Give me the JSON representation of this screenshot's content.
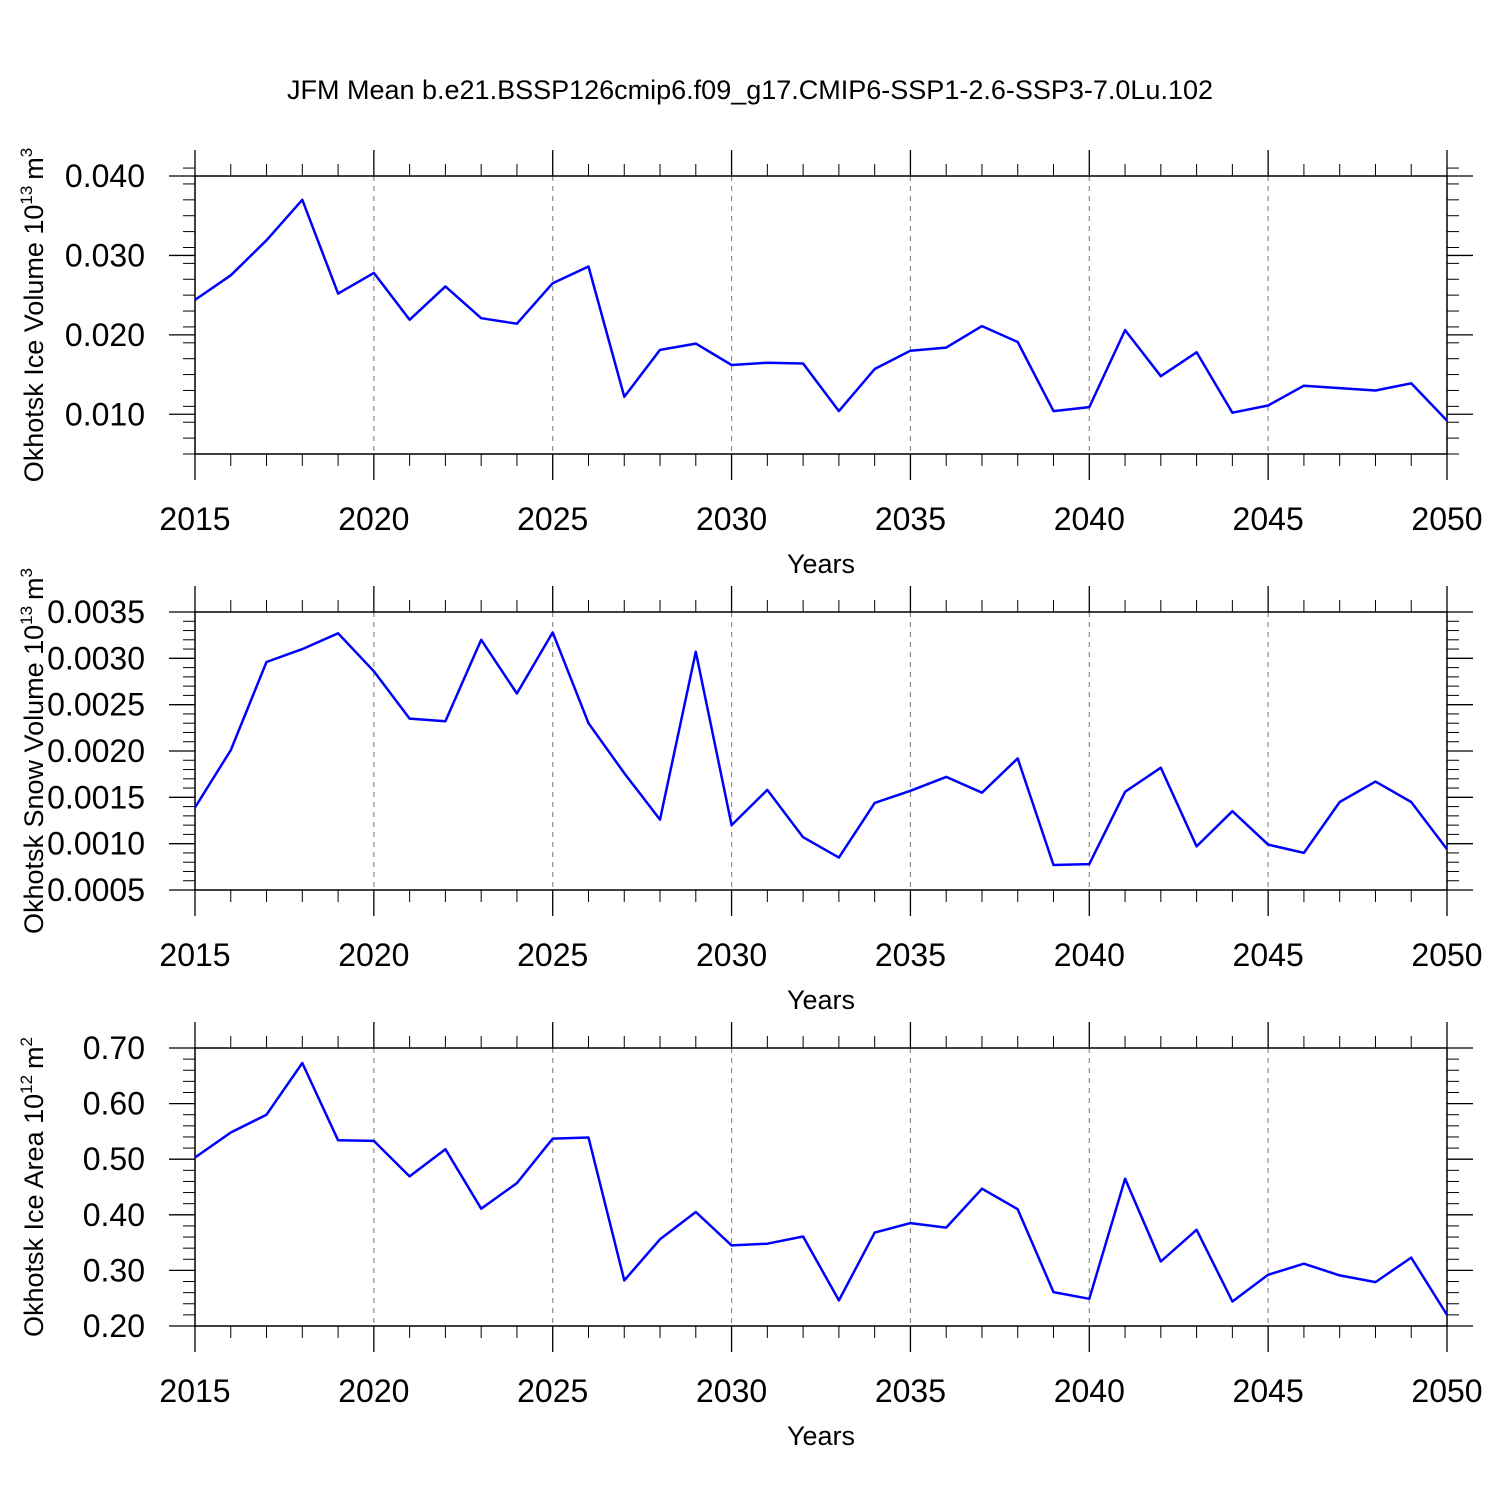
{
  "chart_data": [
    {
      "type": "line",
      "title": "JFM Mean b.e21.BSSP126cmip6.f09_g17.CMIP6-SSP1-2.6-SSP3-7.0Lu.102",
      "ylabel_main": "Okhotsk Ice Volume 10",
      "ylabel_exp": "13",
      "ylabel_unit": "m",
      "ylabel_unit_exp": "3",
      "xlabel": "Years",
      "xlim": [
        2015,
        2050
      ],
      "ylim": [
        0.005,
        0.04
      ],
      "yticks": [
        0.01,
        0.02,
        0.03,
        0.04
      ],
      "ytick_labels": [
        "0.010",
        "0.020",
        "0.030",
        "0.040"
      ],
      "xticks": [
        2015,
        2020,
        2025,
        2030,
        2035,
        2040,
        2045,
        2050
      ],
      "xtick_labels": [
        "2015",
        "2020",
        "2025",
        "2030",
        "2035",
        "2040",
        "2045",
        "2050"
      ],
      "line_color": "#0000ff",
      "x": [
        2015,
        2016,
        2017,
        2018,
        2019,
        2020,
        2021,
        2022,
        2023,
        2024,
        2025,
        2026,
        2027,
        2028,
        2029,
        2030,
        2031,
        2032,
        2033,
        2034,
        2035,
        2036,
        2037,
        2038,
        2039,
        2040,
        2041,
        2042,
        2043,
        2044,
        2045,
        2046,
        2047,
        2048,
        2049,
        2050
      ],
      "values": [
        0.0244,
        0.0275,
        0.0319,
        0.037,
        0.0252,
        0.0278,
        0.0219,
        0.0261,
        0.0221,
        0.0214,
        0.0265,
        0.0286,
        0.0122,
        0.0181,
        0.0189,
        0.0162,
        0.0165,
        0.0164,
        0.0104,
        0.0157,
        0.018,
        0.0184,
        0.0211,
        0.0191,
        0.0104,
        0.0109,
        0.0206,
        0.0148,
        0.0178,
        0.0102,
        0.0111,
        0.0136,
        0.0133,
        0.013,
        0.0139,
        0.0092
      ]
    },
    {
      "type": "line",
      "ylabel_main": "Okhotsk Snow Volume 10",
      "ylabel_exp": "13",
      "ylabel_unit": "m",
      "ylabel_unit_exp": "3",
      "xlabel": "Years",
      "xlim": [
        2015,
        2050
      ],
      "ylim": [
        0.0005,
        0.0035
      ],
      "yticks": [
        0.0005,
        0.001,
        0.0015,
        0.002,
        0.0025,
        0.003,
        0.0035
      ],
      "ytick_labels": [
        "0.0005",
        "0.0010",
        "0.0015",
        "0.0020",
        "0.0025",
        "0.0030",
        "0.0035"
      ],
      "xticks": [
        2015,
        2020,
        2025,
        2030,
        2035,
        2040,
        2045,
        2050
      ],
      "xtick_labels": [
        "2015",
        "2020",
        "2025",
        "2030",
        "2035",
        "2040",
        "2045",
        "2050"
      ],
      "line_color": "#0000ff",
      "x": [
        2015,
        2016,
        2017,
        2018,
        2019,
        2020,
        2021,
        2022,
        2023,
        2024,
        2025,
        2026,
        2027,
        2028,
        2029,
        2030,
        2031,
        2032,
        2033,
        2034,
        2035,
        2036,
        2037,
        2038,
        2039,
        2040,
        2041,
        2042,
        2043,
        2044,
        2045,
        2046,
        2047,
        2048,
        2049,
        2050
      ],
      "values": [
        0.00139,
        0.00201,
        0.00296,
        0.0031,
        0.00327,
        0.00286,
        0.00235,
        0.00232,
        0.0032,
        0.00262,
        0.00328,
        0.0023,
        0.00176,
        0.00126,
        0.00307,
        0.0012,
        0.00158,
        0.00107,
        0.00085,
        0.00144,
        0.00157,
        0.00172,
        0.00155,
        0.00192,
        0.00077,
        0.00078,
        0.00156,
        0.00182,
        0.00097,
        0.00135,
        0.00099,
        0.0009,
        0.00145,
        0.00167,
        0.00145,
        0.00094
      ]
    },
    {
      "type": "line",
      "ylabel_main": "Okhotsk Ice Area 10",
      "ylabel_exp": "12",
      "ylabel_unit": "m",
      "ylabel_unit_exp": "2",
      "xlabel": "Years",
      "xlim": [
        2015,
        2050
      ],
      "ylim": [
        0.2,
        0.7
      ],
      "yticks": [
        0.2,
        0.3,
        0.4,
        0.5,
        0.6,
        0.7
      ],
      "ytick_labels": [
        "0.20",
        "0.30",
        "0.40",
        "0.50",
        "0.60",
        "0.70"
      ],
      "xticks": [
        2015,
        2020,
        2025,
        2030,
        2035,
        2040,
        2045,
        2050
      ],
      "xtick_labels": [
        "2015",
        "2020",
        "2025",
        "2030",
        "2035",
        "2040",
        "2045",
        "2050"
      ],
      "line_color": "#0000ff",
      "x": [
        2015,
        2016,
        2017,
        2018,
        2019,
        2020,
        2021,
        2022,
        2023,
        2024,
        2025,
        2026,
        2027,
        2028,
        2029,
        2030,
        2031,
        2032,
        2033,
        2034,
        2035,
        2036,
        2037,
        2038,
        2039,
        2040,
        2041,
        2042,
        2043,
        2044,
        2045,
        2046,
        2047,
        2048,
        2049,
        2050
      ],
      "values": [
        0.503,
        0.548,
        0.58,
        0.673,
        0.534,
        0.533,
        0.469,
        0.518,
        0.411,
        0.457,
        0.537,
        0.539,
        0.282,
        0.356,
        0.405,
        0.345,
        0.348,
        0.361,
        0.246,
        0.368,
        0.385,
        0.377,
        0.447,
        0.41,
        0.261,
        0.249,
        0.465,
        0.316,
        0.373,
        0.244,
        0.292,
        0.312,
        0.291,
        0.279,
        0.323,
        0.22
      ]
    }
  ]
}
